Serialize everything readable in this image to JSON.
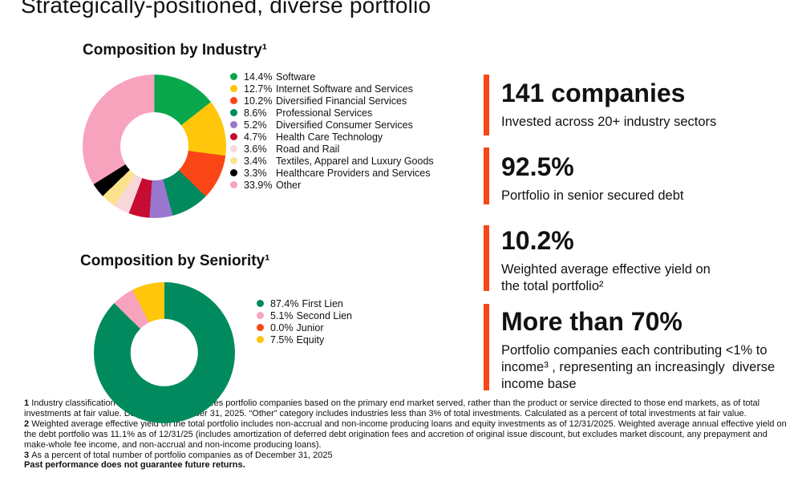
{
  "title": "Strategically-positioned, diverse portfolio",
  "colors": {
    "accent": "#FA4616",
    "background": "#FFFFFF",
    "text": "#111111"
  },
  "chart_data": [
    {
      "type": "pie",
      "donut": true,
      "title": "Composition by Industry¹",
      "legend_position": "right",
      "labels": [
        "Software",
        "Internet Software and Services",
        "Diversified Financial Services",
        "Professional Services",
        "Diversified Consumer Services",
        "Health Care Technology",
        "Road and Rail",
        "Textiles, Apparel and Luxury Goods",
        "Healthcare Providers and Services",
        "Other"
      ],
      "pct_labels": [
        "14.4%",
        "12.7%",
        "10.2%",
        "8.6%",
        "5.2%",
        "4.7%",
        "3.6%",
        "3.4%",
        "3.3%",
        "33.9%"
      ],
      "values": [
        14.4,
        12.7,
        10.2,
        8.6,
        5.2,
        4.7,
        3.6,
        3.4,
        3.3,
        33.9
      ],
      "colors": [
        "#0AA74D",
        "#FFC60B",
        "#FA4616",
        "#008A5E",
        "#9A77CE",
        "#C60C30",
        "#F8D7DB",
        "#FBE38E",
        "#000000",
        "#F8A3BE"
      ]
    },
    {
      "type": "pie",
      "donut": true,
      "title": "Composition by Seniority¹",
      "legend_position": "right",
      "labels": [
        "First Lien",
        "Second Lien",
        "Junior",
        "Equity"
      ],
      "pct_labels": [
        "87.4%",
        "5.1%",
        "0.0%",
        "7.5%"
      ],
      "values": [
        87.4,
        5.1,
        0.0,
        7.5
      ],
      "colors": [
        "#008A5E",
        "#F8A3BE",
        "#FA4616",
        "#FFC60B"
      ]
    }
  ],
  "stats": [
    {
      "value": "141 companies",
      "caption": "Invested across 20+ industry sectors"
    },
    {
      "value": "92.5%",
      "caption": "Portfolio in senior secured debt"
    },
    {
      "value": "10.2%",
      "caption": "Weighted average effective yield on the total portfolio²"
    },
    {
      "value": "More than 70%",
      "caption": "Portfolio companies each contributing <1% to income³ , representing an increasingly  diverse income base"
    }
  ],
  "footnotes": [
    {
      "num": "1",
      "text": "Industry classification system (GICS) categorizes portfolio companies based on the primary end market served, rather than the product or service directed to those end markets, as of total investments at fair value.  Data as of December 31, 2025. “Other” category includes industries less than 3% of total investments. Calculated as a percent of total investments at fair value.",
      "bold": false
    },
    {
      "num": "2",
      "text": "Weighted average effective yield on the total portfolio includes non-accrual and non-income producing loans and equity investments as of 12/31/2025. Weighted average annual effective yield  on the debt portfolio  was 11.1% as of 12/31/25 (includes amortization of deferred debt origination fees and accretion of original issue discount, but excludes market discount, any prepayment and make-whole fee income, and non-accrual and non-income producing loans).",
      "bold": false
    },
    {
      "num": "3",
      "text": "As a percent of total number of portfolio companies as of December 31, 2025",
      "bold": false
    },
    {
      "num": "",
      "text": "Past performance does not guarantee future returns.",
      "bold": true
    }
  ]
}
